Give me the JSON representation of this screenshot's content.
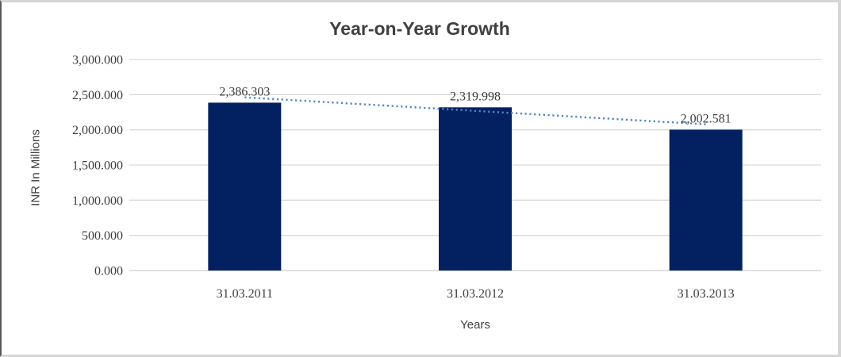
{
  "chart_data": {
    "type": "bar",
    "title": "Year-on-Year Growth",
    "xlabel": "Years",
    "ylabel": "INR In Millions",
    "categories": [
      "31.03.2011",
      "31.03.2012",
      "31.03.2013"
    ],
    "values": [
      2386.303,
      2319.998,
      2002.581
    ],
    "value_labels": [
      "2,386.303",
      "2,319.998",
      "2,002.581"
    ],
    "ylim": [
      0,
      3000
    ],
    "ytick_step": 500,
    "ytick_labels": [
      "0.000",
      "500.000",
      "1,000.000",
      "1,500.000",
      "2,000.000",
      "2,500.000",
      "3,000.000"
    ],
    "grid": true,
    "legend": "none",
    "bar_color": "#032161",
    "trendline": {
      "type": "linear",
      "style": "dotted",
      "color": "#4e86c6"
    },
    "gridline_color": "#d9d9d9",
    "axis_line_color": "#cfcfcf",
    "text_color": "#3d3d3d"
  }
}
